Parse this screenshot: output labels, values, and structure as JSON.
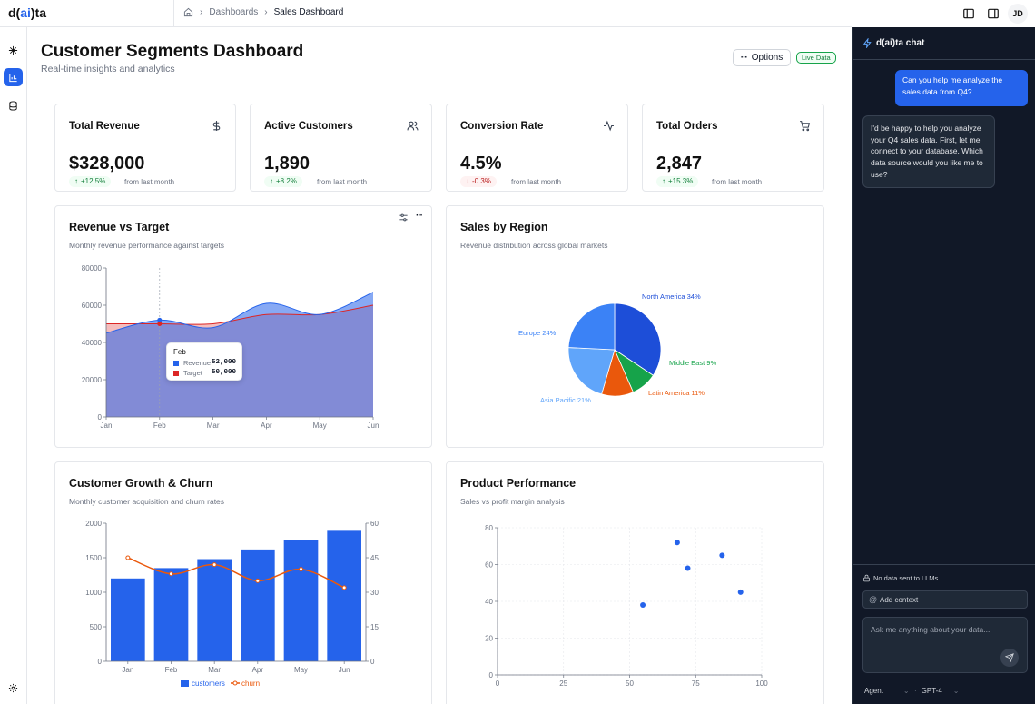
{
  "app": {
    "logo_prefix": "d(",
    "logo_ai": "ai",
    "logo_suffix": ")ta",
    "user_initials": "JD"
  },
  "breadcrumb": {
    "items": [
      "Dashboards",
      "Sales Dashboard"
    ]
  },
  "page": {
    "title": "Customer Segments Dashboard",
    "subtitle": "Real-time insights and analytics",
    "options_label": "Options",
    "live_label": "Live Data"
  },
  "kpis": [
    {
      "label": "Total Revenue",
      "value": "$328,000",
      "change": "+12.5%",
      "direction": "up",
      "note": "from last month",
      "icon": "dollar-icon"
    },
    {
      "label": "Active Customers",
      "value": "1,890",
      "change": "+8.2%",
      "direction": "up",
      "note": "from last month",
      "icon": "users-icon"
    },
    {
      "label": "Conversion Rate",
      "value": "4.5%",
      "change": "-0.3%",
      "direction": "down",
      "note": "from last month",
      "icon": "activity-icon"
    },
    {
      "label": "Total Orders",
      "value": "2,847",
      "change": "+15.3%",
      "direction": "up",
      "note": "from last month",
      "icon": "cart-icon"
    }
  ],
  "colors": {
    "accent": "#2563eb",
    "revenue": "#2563eb",
    "target": "#dc2626",
    "overlap": "#9b6fc0",
    "churn": "#ea580c",
    "up": "#15803d",
    "down": "#b91c1c",
    "chat_bg": "#111827"
  },
  "charts": {
    "revenue": {
      "title": "Revenue vs Target",
      "subtitle": "Monthly revenue performance against targets"
    },
    "region": {
      "title": "Sales by Region",
      "subtitle": "Revenue distribution across global markets"
    },
    "growth": {
      "title": "Customer Growth & Churn",
      "subtitle": "Monthly customer acquisition and churn rates"
    },
    "product": {
      "title": "Product Performance",
      "subtitle": "Sales vs profit margin analysis"
    }
  },
  "chart_data": [
    {
      "type": "area",
      "title": "Revenue vs Target",
      "categories": [
        "Jan",
        "Feb",
        "Mar",
        "Apr",
        "May",
        "Jun"
      ],
      "series": [
        {
          "name": "Revenue",
          "values": [
            45000,
            52000,
            48000,
            61000,
            55000,
            67000
          ]
        },
        {
          "name": "Target",
          "values": [
            50000,
            50000,
            50000,
            55000,
            55000,
            60000
          ]
        }
      ],
      "yticks": [
        "0",
        "20000",
        "40000",
        "60000",
        "80000"
      ],
      "ylim": [
        0,
        80000
      ],
      "tooltip": {
        "label": "Feb",
        "rows": [
          {
            "name": "Revenue",
            "value": "52,000"
          },
          {
            "name": "Target",
            "value": "50,000"
          }
        ]
      }
    },
    {
      "type": "pie",
      "title": "Sales by Region",
      "slices": [
        {
          "label": "North America 34%",
          "value": 34,
          "color": "#1d4ed8"
        },
        {
          "label": "Middle East 9%",
          "value": 9,
          "color": "#16a34a"
        },
        {
          "label": "Latin America 11%",
          "value": 11,
          "color": "#ea580c"
        },
        {
          "label": "Asia Pacific 21%",
          "value": 21,
          "color": "#60a5fa"
        },
        {
          "label": "Europe 24%",
          "value": 24,
          "color": "#3b82f6"
        }
      ]
    },
    {
      "type": "bar",
      "title": "Customer Growth & Churn",
      "categories": [
        "Jan",
        "Feb",
        "Mar",
        "Apr",
        "May",
        "Jun"
      ],
      "series": [
        {
          "name": "customers",
          "type": "bar",
          "values": [
            1200,
            1350,
            1480,
            1620,
            1760,
            1890
          ]
        },
        {
          "name": "churn",
          "type": "line",
          "values": [
            45,
            38,
            42,
            35,
            40,
            32
          ]
        }
      ],
      "yleft_ticks": [
        "0",
        "500",
        "1000",
        "1500",
        "2000"
      ],
      "yleft_lim": [
        0,
        2000
      ],
      "yright_ticks": [
        "0",
        "15",
        "30",
        "45",
        "60"
      ],
      "yright_lim": [
        0,
        60
      ]
    },
    {
      "type": "scatter",
      "title": "Product Performance",
      "points": [
        {
          "x": 55,
          "y": 38
        },
        {
          "x": 68,
          "y": 72
        },
        {
          "x": 72,
          "y": 58
        },
        {
          "x": 85,
          "y": 65
        },
        {
          "x": 92,
          "y": 45
        }
      ],
      "xticks": [
        "0",
        "25",
        "50",
        "75",
        "100"
      ],
      "xlim": [
        0,
        100
      ],
      "yticks": [
        "0",
        "20",
        "40",
        "60",
        "80"
      ],
      "ylim": [
        0,
        80
      ]
    }
  ],
  "chat": {
    "title": "d(ai)ta chat",
    "messages": [
      {
        "role": "user",
        "text": "Can you help me analyze the sales data from Q4?"
      },
      {
        "role": "assistant",
        "text": "I'd be happy to help you analyze your Q4 sales data. First, let me connect to your database. Which data source would you like me to use?"
      }
    ],
    "privacy_note": "No data sent to LLMs",
    "add_context": "Add context",
    "input_placeholder": "Ask me anything about your data...",
    "mode": "Agent",
    "model": "GPT-4"
  }
}
